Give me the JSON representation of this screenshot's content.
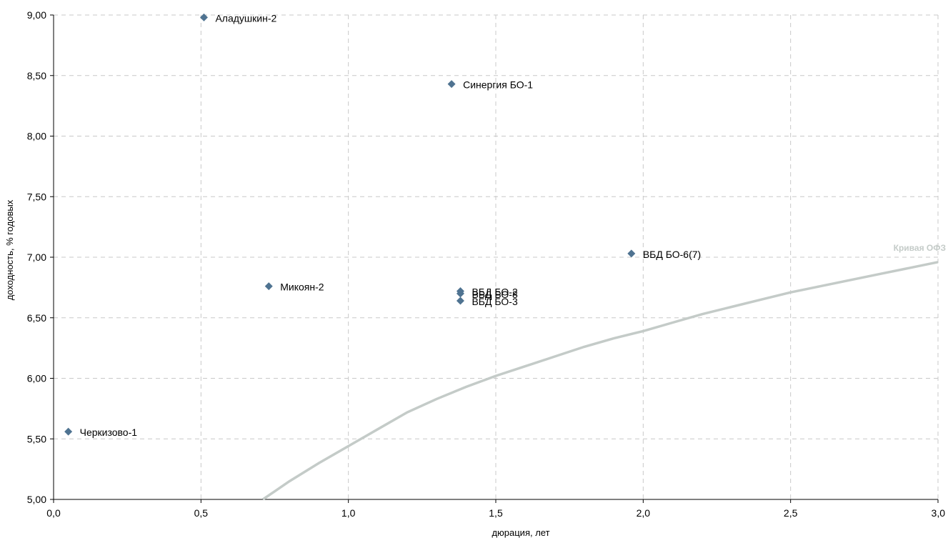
{
  "chart_data": {
    "type": "scatter",
    "title": "",
    "xlabel": "дюрация, лет",
    "ylabel": "доходность, % годовых",
    "xlim": [
      0,
      3
    ],
    "ylim": [
      5,
      9
    ],
    "grid": true,
    "x_ticks": [
      "0,0",
      "0,5",
      "1,0",
      "1,5",
      "2,0",
      "2,5",
      "3,0"
    ],
    "y_ticks": [
      "5,00",
      "5,50",
      "6,00",
      "6,50",
      "7,00",
      "7,50",
      "8,00",
      "8,50",
      "9,00"
    ],
    "points": [
      {
        "label": "Аладушкин-2",
        "x": 0.51,
        "y": 8.98
      },
      {
        "label": "Синергия БО-1",
        "x": 1.35,
        "y": 8.43
      },
      {
        "label": "ВБД БО-6(7)",
        "x": 1.96,
        "y": 7.03
      },
      {
        "label": "Микоян-2",
        "x": 0.73,
        "y": 6.76
      },
      {
        "label": "ВБД БО-2",
        "x": 1.38,
        "y": 6.72
      },
      {
        "label": "ВБД БО-8",
        "x": 1.38,
        "y": 6.7
      },
      {
        "label": "ВБД БО-3",
        "x": 1.38,
        "y": 6.64
      },
      {
        "label": "Черкизово-1",
        "x": 0.05,
        "y": 5.56
      }
    ],
    "curve": {
      "name": "Кривая ОФЗ",
      "points": [
        [
          0.71,
          5.0
        ],
        [
          0.8,
          5.15
        ],
        [
          0.9,
          5.3
        ],
        [
          1.0,
          5.44
        ],
        [
          1.1,
          5.58
        ],
        [
          1.2,
          5.72
        ],
        [
          1.3,
          5.83
        ],
        [
          1.4,
          5.93
        ],
        [
          1.5,
          6.02
        ],
        [
          1.6,
          6.1
        ],
        [
          1.7,
          6.18
        ],
        [
          1.8,
          6.26
        ],
        [
          1.9,
          6.33
        ],
        [
          2.0,
          6.39
        ],
        [
          2.1,
          6.46
        ],
        [
          2.2,
          6.53
        ],
        [
          2.3,
          6.59
        ],
        [
          2.4,
          6.65
        ],
        [
          2.5,
          6.71
        ],
        [
          2.6,
          6.76
        ],
        [
          2.7,
          6.81
        ],
        [
          2.8,
          6.86
        ],
        [
          2.9,
          6.91
        ],
        [
          3.0,
          6.96
        ]
      ]
    },
    "colors": {
      "marker": "#4f7391",
      "curve": "#c4cbc8",
      "curve_label": "#c4cbc8",
      "grid": "#c8c8c8",
      "axis": "#000000"
    }
  }
}
